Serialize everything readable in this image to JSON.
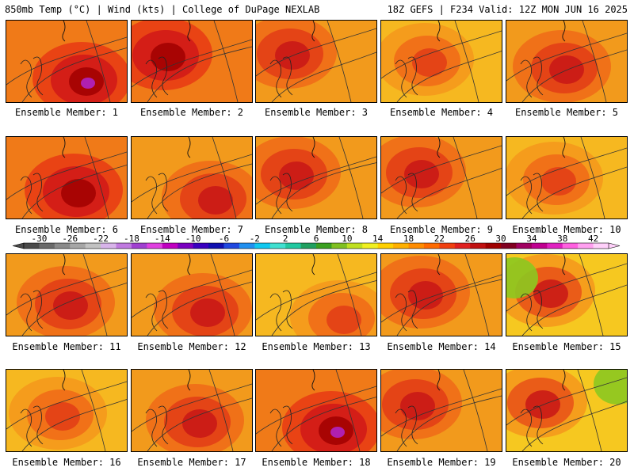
{
  "header": {
    "left_text": "850mb Temp (°C) | Wind (kts) | College of DuPage NEXLAB",
    "right_text": "18Z GEFS | F234 Valid: 12Z MON JUN 16 2025"
  },
  "colorbar": {
    "tick_labels": [
      "-30",
      "-26",
      "-22",
      "-18",
      "-14",
      "-10",
      "-6",
      "-2",
      "2",
      "6",
      "10",
      "14",
      "18",
      "22",
      "26",
      "30",
      "34",
      "38",
      "42"
    ],
    "min": -32,
    "max": 44,
    "step": 2,
    "colors": [
      "#4a4a4a",
      "#6a6a6a",
      "#8a8a8a",
      "#a6a6a6",
      "#c2c2c2",
      "#d8b4ea",
      "#c07ae0",
      "#a040d0",
      "#e040e0",
      "#c000c0",
      "#7a00c0",
      "#3a00c0",
      "#1010b0",
      "#2048e0",
      "#2090f0",
      "#10c8f0",
      "#40e0d0",
      "#20c8a0",
      "#20a060",
      "#3aa020",
      "#80c020",
      "#c0e020",
      "#f0f020",
      "#ffd000",
      "#ffb000",
      "#ff8c00",
      "#ff6a00",
      "#f04010",
      "#e02020",
      "#c01010",
      "#a00000",
      "#800020",
      "#a00060",
      "#c00090",
      "#e020c0",
      "#ff60e0",
      "#ffa0f0",
      "#ffd0fa"
    ]
  },
  "panels": [
    {
      "label": "Ensemble Member: 1",
      "theme": "hot"
    },
    {
      "label": "Ensemble Member: 2",
      "theme": "hot"
    },
    {
      "label": "Ensemble Member: 3",
      "theme": "warm"
    },
    {
      "label": "Ensemble Member: 4",
      "theme": "mild"
    },
    {
      "label": "Ensemble Member: 5",
      "theme": "warm"
    },
    {
      "label": "Ensemble Member: 6",
      "theme": "hot"
    },
    {
      "label": "Ensemble Member: 7",
      "theme": "warm"
    },
    {
      "label": "Ensemble Member: 8",
      "theme": "warm"
    },
    {
      "label": "Ensemble Member: 9",
      "theme": "warm"
    },
    {
      "label": "Ensemble Member: 10",
      "theme": "mild"
    },
    {
      "label": "Ensemble Member: 11",
      "theme": "warm"
    },
    {
      "label": "Ensemble Member: 12",
      "theme": "warm"
    },
    {
      "label": "Ensemble Member: 13",
      "theme": "mild"
    },
    {
      "label": "Ensemble Member: 14",
      "theme": "warm"
    },
    {
      "label": "Ensemble Member: 15",
      "theme": "cool"
    },
    {
      "label": "Ensemble Member: 16",
      "theme": "mild"
    },
    {
      "label": "Ensemble Member: 17",
      "theme": "warm"
    },
    {
      "label": "Ensemble Member: 18",
      "theme": "hot"
    },
    {
      "label": "Ensemble Member: 19",
      "theme": "warm"
    },
    {
      "label": "Ensemble Member: 20",
      "theme": "cool"
    }
  ]
}
